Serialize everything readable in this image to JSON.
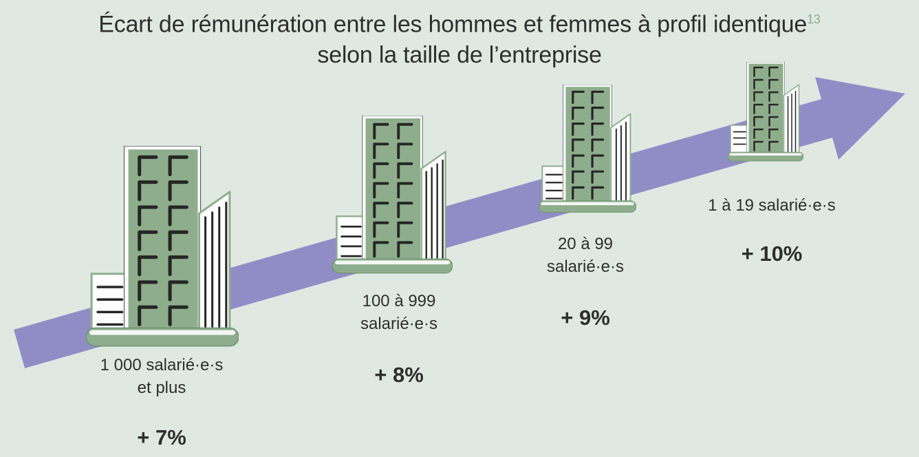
{
  "title": {
    "line1": "Écart de rémunération entre les hommes et femmes à profil identique",
    "footnote_marker": "13",
    "line2": "selon la taille de l’entreprise"
  },
  "chart_data": {
    "type": "bar",
    "style": "pictogram — office buildings of decreasing size along an ascending purple trend arrow",
    "title": "Écart de rémunération entre les hommes et femmes à profil identique selon la taille de l’entreprise",
    "footnote_marker": "13",
    "categories": [
      "1 000 salarié·e·s et plus",
      "100 à 999 salarié·e·s",
      "20 à 99 salarié·e·s",
      "1 à 19 salarié·e·s"
    ],
    "values": [
      7,
      8,
      9,
      10
    ],
    "value_labels": [
      "+ 7%",
      "+ 8%",
      "+ 9%",
      "+ 10%"
    ],
    "unit": "%",
    "xlabel": "",
    "ylabel": "",
    "legend": "none",
    "trend": "pay gap increases as company size decreases (arrow points up to the right)"
  },
  "stations": [
    {
      "line1": "1 000 salarié·e·s",
      "line2": "et plus",
      "value": "+ 7%"
    },
    {
      "line1": "100 à 999",
      "line2": "salarié·e·s",
      "value": "+ 8%"
    },
    {
      "line1": "20 à 99",
      "line2": "salarié·e·s",
      "value": "+ 9%"
    },
    {
      "line1": "1 à 19 salarié·e·s",
      "line2": "",
      "value": "+ 10%"
    }
  ],
  "icons": {
    "trend_arrow": "diagonal-ascending-arrow",
    "building": "office-buildings-pictogram"
  },
  "colors": {
    "background": "#dfe9e2",
    "arrow": "#908dc6",
    "building_green": "#8ead8c",
    "building_outline": "#6d926f",
    "window_lines": "#262626",
    "text": "#2e2e2e",
    "footnote_green": "#8aab8e",
    "white": "#ffffff"
  }
}
